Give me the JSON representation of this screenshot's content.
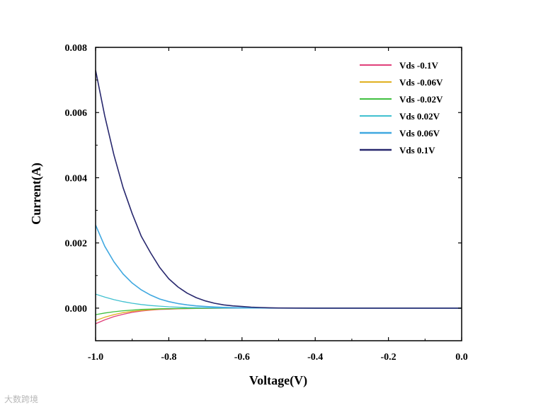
{
  "chart_data": {
    "type": "line",
    "title": "",
    "xlabel": "Voltage(V)",
    "ylabel": "Current(A)",
    "xlim": [
      -1.0,
      0.0
    ],
    "ylim": [
      -0.001,
      0.008
    ],
    "xticks": [
      -1.0,
      -0.8,
      -0.6,
      -0.4,
      -0.2,
      0.0
    ],
    "xtick_labels": [
      "-1.0",
      "-0.8",
      "-0.6",
      "-0.4",
      "-0.2",
      "0.0"
    ],
    "yticks": [
      0.0,
      0.002,
      0.004,
      0.006,
      0.008
    ],
    "ytick_labels": [
      "0.000",
      "0.002",
      "0.004",
      "0.006",
      "0.008"
    ],
    "grid": false,
    "legend_position": "top-right",
    "x": [
      -1.0,
      -0.975,
      -0.95,
      -0.925,
      -0.9,
      -0.875,
      -0.85,
      -0.825,
      -0.8,
      -0.775,
      -0.75,
      -0.725,
      -0.7,
      -0.675,
      -0.65,
      -0.625,
      -0.6,
      -0.575,
      -0.55,
      -0.525,
      -0.5,
      -0.4,
      -0.3,
      -0.2,
      -0.1,
      0.0
    ],
    "series": [
      {
        "name": "Vds -0.1V",
        "color": "#e0407a",
        "values": [
          -0.00048,
          -0.00036,
          -0.00026,
          -0.00019,
          -0.00013,
          -9e-05,
          -6e-05,
          -4e-05,
          -3e-05,
          -2e-05,
          -1.5e-05,
          -1e-05,
          -7e-06,
          -5e-06,
          -3e-06,
          -2e-06,
          -1e-06,
          0,
          0,
          0,
          0,
          0,
          0,
          0,
          0,
          0
        ]
      },
      {
        "name": "Vds -0.06V",
        "color": "#e0b020",
        "values": [
          -0.00038,
          -0.00028,
          -0.0002,
          -0.00014,
          -0.0001,
          -7e-05,
          -5e-05,
          -3e-05,
          -2e-05,
          -1.5e-05,
          -1e-05,
          -7e-06,
          -5e-06,
          -3e-06,
          -2e-06,
          -1e-06,
          0,
          0,
          0,
          0,
          0,
          0,
          0,
          0,
          0,
          0
        ]
      },
      {
        "name": "Vds -0.02V",
        "color": "#40c040",
        "values": [
          -0.0002,
          -0.00015,
          -0.00011,
          -8e-05,
          -6e-05,
          -4e-05,
          -3e-05,
          -2e-05,
          -1.5e-05,
          -1e-05,
          -7e-06,
          -5e-06,
          -3e-06,
          -2e-06,
          -1e-06,
          0,
          0,
          0,
          0,
          0,
          0,
          0,
          0,
          0,
          0,
          0
        ]
      },
      {
        "name": "Vds 0.02V",
        "color": "#40c0d0",
        "values": [
          0.00043,
          0.00034,
          0.00026,
          0.0002,
          0.00015,
          0.00011,
          8e-05,
          6e-05,
          4e-05,
          3e-05,
          2e-05,
          1.5e-05,
          1e-05,
          7e-06,
          5e-06,
          3e-06,
          2e-06,
          1e-06,
          0,
          0,
          0,
          0,
          0,
          0,
          0,
          0
        ]
      },
      {
        "name": "Vds 0.06V",
        "color": "#40a8e0",
        "values": [
          0.00255,
          0.0019,
          0.00142,
          0.00105,
          0.00077,
          0.00056,
          0.0004,
          0.00028,
          0.0002,
          0.00014,
          0.0001,
          7e-05,
          5e-05,
          3.5e-05,
          2.4e-05,
          1.6e-05,
          1e-05,
          7e-06,
          4e-06,
          2e-06,
          1e-06,
          0,
          0,
          0,
          0,
          0
        ]
      },
      {
        "name": "Vds 0.1V",
        "color": "#28286e",
        "values": [
          0.0073,
          0.0059,
          0.0047,
          0.0037,
          0.0029,
          0.0022,
          0.0017,
          0.00125,
          0.0009,
          0.00065,
          0.00046,
          0.00032,
          0.00022,
          0.00015,
          0.0001,
          7e-05,
          5e-05,
          3e-05,
          2e-05,
          1e-05,
          5e-06,
          0,
          0,
          0,
          0,
          0
        ]
      }
    ]
  },
  "watermark": "大数跨境"
}
